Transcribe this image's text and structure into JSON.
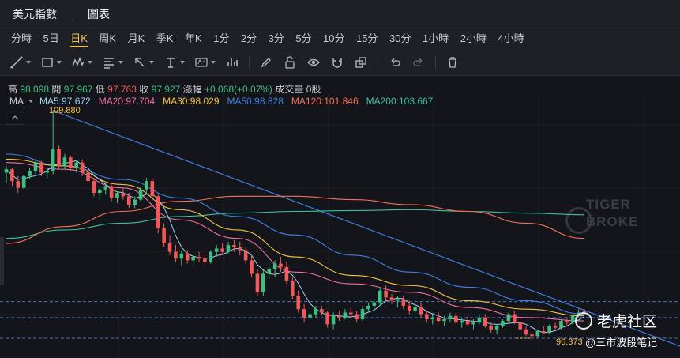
{
  "header": {
    "title": "美元指數",
    "tab": "圖表"
  },
  "periods": [
    {
      "label": "分時",
      "active": false
    },
    {
      "label": "5日",
      "active": false
    },
    {
      "label": "日K",
      "active": true
    },
    {
      "label": "周K",
      "active": false
    },
    {
      "label": "月K",
      "active": false
    },
    {
      "label": "季K",
      "active": false
    },
    {
      "label": "年K",
      "active": false
    },
    {
      "label": "1分",
      "active": false
    },
    {
      "label": "2分",
      "active": false
    },
    {
      "label": "3分",
      "active": false
    },
    {
      "label": "5分",
      "active": false
    },
    {
      "label": "10分",
      "active": false
    },
    {
      "label": "15分",
      "active": false
    },
    {
      "label": "30分",
      "active": false
    },
    {
      "label": "1小時",
      "active": false
    },
    {
      "label": "2小時",
      "active": false
    },
    {
      "label": "4小時",
      "active": false
    }
  ],
  "tools": [
    "trend-line-icon",
    "rectangle-icon",
    "pattern-icon",
    "fibonacci-icon",
    "arrow-icon",
    "text-icon",
    "label-icon",
    "indicator-icon",
    "pen-icon",
    "lock-icon",
    "eye-icon",
    "magnet-icon",
    "clone-icon",
    "undo-icon",
    "redo-icon",
    "trash-icon"
  ],
  "quote": {
    "high_label": "高",
    "high": "98.098",
    "open_label": "開",
    "open": "97.967",
    "low_label": "低",
    "low": "97.763",
    "close_label": "收",
    "close": "97.927",
    "change_label": "漲幅",
    "change": "+0.068(+0.07%)",
    "volume_label": "成交量",
    "volume": "0股"
  },
  "ma": {
    "label": "MA",
    "items": [
      {
        "text": "MA5:97.672",
        "color": "#9fd3f5"
      },
      {
        "text": "MA20:97.704",
        "color": "#f06fa0"
      },
      {
        "text": "MA30:98.029",
        "color": "#f5c244"
      },
      {
        "text": "MA50:98.828",
        "color": "#3f7fe0"
      },
      {
        "text": "MA120:101.846",
        "color": "#f2705a"
      },
      {
        "text": "MA200:103.667",
        "color": "#3fbfa0"
      }
    ]
  },
  "annotations": {
    "high_mark": "109.880",
    "low_mark": "96.373"
  },
  "watermark": {
    "line1": "TIGER",
    "line2": "BROKE"
  },
  "brand": {
    "name": "老虎社区",
    "author": "@三市波段笔记"
  },
  "chart_data": {
    "type": "candlestick",
    "y_high": 109.88,
    "y_low": 96.373,
    "colors": {
      "up": "#3fbf7f",
      "down": "#f25858"
    },
    "candles": [
      [
        106.2,
        106.6,
        105.6,
        106.4
      ],
      [
        106.4,
        106.5,
        105.4,
        105.7
      ],
      [
        105.7,
        106.0,
        105.0,
        105.3
      ],
      [
        105.3,
        106.1,
        105.2,
        106.0
      ],
      [
        106.0,
        106.5,
        105.8,
        106.3
      ],
      [
        106.3,
        107.0,
        106.1,
        106.8
      ],
      [
        106.8,
        106.9,
        106.0,
        106.2
      ],
      [
        106.2,
        106.5,
        105.8,
        106.3
      ],
      [
        106.3,
        109.88,
        106.1,
        107.6
      ],
      [
        107.6,
        107.8,
        106.4,
        106.6
      ],
      [
        106.6,
        107.3,
        106.4,
        107.1
      ],
      [
        107.1,
        107.2,
        106.3,
        106.5
      ],
      [
        106.5,
        106.9,
        106.2,
        106.8
      ],
      [
        106.8,
        107.0,
        106.0,
        106.2
      ],
      [
        106.2,
        106.5,
        105.5,
        105.7
      ],
      [
        105.7,
        105.9,
        104.8,
        105.0
      ],
      [
        105.0,
        105.3,
        104.6,
        105.2
      ],
      [
        105.2,
        105.6,
        104.9,
        105.4
      ],
      [
        105.4,
        105.5,
        104.5,
        104.7
      ],
      [
        104.7,
        105.1,
        104.4,
        105.0
      ],
      [
        105.0,
        105.3,
        104.6,
        104.8
      ],
      [
        104.8,
        105.0,
        104.1,
        104.3
      ],
      [
        104.3,
        104.8,
        104.1,
        104.6
      ],
      [
        104.6,
        105.4,
        104.5,
        105.2
      ],
      [
        105.2,
        105.9,
        105.0,
        105.7
      ],
      [
        105.7,
        105.8,
        104.6,
        104.8
      ],
      [
        104.8,
        104.9,
        102.6,
        102.9
      ],
      [
        102.9,
        103.2,
        101.8,
        102.0
      ],
      [
        102.0,
        102.5,
        101.3,
        101.5
      ],
      [
        101.5,
        101.9,
        100.9,
        101.1
      ],
      [
        101.1,
        101.6,
        100.7,
        101.4
      ],
      [
        101.4,
        101.6,
        100.8,
        101.0
      ],
      [
        101.0,
        101.4,
        100.6,
        101.2
      ],
      [
        101.2,
        101.5,
        100.9,
        101.1
      ],
      [
        101.1,
        101.4,
        100.7,
        100.9
      ],
      [
        100.9,
        101.6,
        100.8,
        101.5
      ],
      [
        101.5,
        101.9,
        101.2,
        101.7
      ],
      [
        101.7,
        102.0,
        101.3,
        101.5
      ],
      [
        101.5,
        102.1,
        101.4,
        101.9
      ],
      [
        101.9,
        102.2,
        101.5,
        101.8
      ],
      [
        101.8,
        102.1,
        101.3,
        101.6
      ],
      [
        101.6,
        101.8,
        100.8,
        101.0
      ],
      [
        101.0,
        101.3,
        100.0,
        100.2
      ],
      [
        100.2,
        100.5,
        98.9,
        99.1
      ],
      [
        99.1,
        100.4,
        98.9,
        100.2
      ],
      [
        100.2,
        100.8,
        99.9,
        100.5
      ],
      [
        100.5,
        101.0,
        100.0,
        100.8
      ],
      [
        100.8,
        101.2,
        100.3,
        100.6
      ],
      [
        100.6,
        100.9,
        99.6,
        99.8
      ],
      [
        99.8,
        100.0,
        98.7,
        98.9
      ],
      [
        98.9,
        99.2,
        97.9,
        98.1
      ],
      [
        98.1,
        98.4,
        97.3,
        97.6
      ],
      [
        97.6,
        98.0,
        97.4,
        97.8
      ],
      [
        97.8,
        98.3,
        97.6,
        98.1
      ],
      [
        98.1,
        98.3,
        97.7,
        97.9
      ],
      [
        97.9,
        98.0,
        97.0,
        97.2
      ],
      [
        97.2,
        97.9,
        96.9,
        97.7
      ],
      [
        97.7,
        98.0,
        97.4,
        97.6
      ],
      [
        97.6,
        98.1,
        97.5,
        97.9
      ],
      [
        97.9,
        98.2,
        97.6,
        97.8
      ],
      [
        97.8,
        98.0,
        97.3,
        97.5
      ],
      [
        97.5,
        98.3,
        97.4,
        98.1
      ],
      [
        98.1,
        98.5,
        97.9,
        98.3
      ],
      [
        98.3,
        98.7,
        98.0,
        98.5
      ],
      [
        98.5,
        99.4,
        98.3,
        99.2
      ],
      [
        99.2,
        99.5,
        98.6,
        98.8
      ],
      [
        98.8,
        99.0,
        98.4,
        98.6
      ],
      [
        98.6,
        98.9,
        98.2,
        98.7
      ],
      [
        98.7,
        98.9,
        98.1,
        98.3
      ],
      [
        98.3,
        98.6,
        97.8,
        98.0
      ],
      [
        98.0,
        98.4,
        97.7,
        98.2
      ],
      [
        98.2,
        98.5,
        97.6,
        97.8
      ],
      [
        97.8,
        98.0,
        97.3,
        97.5
      ],
      [
        97.5,
        97.8,
        97.2,
        97.6
      ],
      [
        97.6,
        97.9,
        97.3,
        97.4
      ],
      [
        97.4,
        97.7,
        97.1,
        97.5
      ],
      [
        97.5,
        97.9,
        97.3,
        97.7
      ],
      [
        97.7,
        97.9,
        97.2,
        97.3
      ],
      [
        97.3,
        97.6,
        97.0,
        97.4
      ],
      [
        97.4,
        97.7,
        97.1,
        97.2
      ],
      [
        97.2,
        97.5,
        96.9,
        97.3
      ],
      [
        97.3,
        97.8,
        97.2,
        97.6
      ],
      [
        97.6,
        97.8,
        97.0,
        97.1
      ],
      [
        97.1,
        97.3,
        96.7,
        96.9
      ],
      [
        96.9,
        97.2,
        96.6,
        97.1
      ],
      [
        97.1,
        97.5,
        97.0,
        97.4
      ],
      [
        97.4,
        97.9,
        97.3,
        97.8
      ],
      [
        97.8,
        98.0,
        97.2,
        97.3
      ],
      [
        97.3,
        97.4,
        96.8,
        96.9
      ],
      [
        96.9,
        97.1,
        96.5,
        96.6
      ],
      [
        96.6,
        96.8,
        96.373,
        96.5
      ],
      [
        96.5,
        96.9,
        96.4,
        96.8
      ],
      [
        96.8,
        97.1,
        96.6,
        96.7
      ],
      [
        96.7,
        97.2,
        96.6,
        97.1
      ],
      [
        97.1,
        97.3,
        96.9,
        97.0
      ],
      [
        97.0,
        97.5,
        96.9,
        97.4
      ],
      [
        97.4,
        97.6,
        97.1,
        97.3
      ],
      [
        97.3,
        97.8,
        97.2,
        97.7
      ],
      [
        97.7,
        98.098,
        97.6,
        97.9
      ],
      [
        97.967,
        98.098,
        97.763,
        97.927
      ]
    ],
    "ma_lines": [
      {
        "name": "MA200",
        "color": "#3fbfa0",
        "values": [
          102.3,
          102.8,
          103.2,
          103.6,
          103.8,
          103.9,
          103.95,
          104.0,
          103.9,
          103.8,
          103.7
        ]
      },
      {
        "name": "MA120",
        "color": "#f2705a",
        "values": [
          102.0,
          103.0,
          103.9,
          104.5,
          104.8,
          104.8,
          104.6,
          104.3,
          103.9,
          103.2,
          102.3
        ]
      },
      {
        "name": "MA50",
        "color": "#3f7fe0",
        "values": [
          107.3,
          106.6,
          105.8,
          104.7,
          103.6,
          102.5,
          101.3,
          100.3,
          99.4,
          98.6,
          97.8
        ]
      },
      {
        "name": "MA30",
        "color": "#f5c244",
        "values": [
          107.0,
          106.6,
          105.5,
          104.0,
          102.8,
          101.2,
          100.1,
          99.5,
          98.6,
          98.1,
          97.7
        ]
      },
      {
        "name": "MA20",
        "color": "#f06fa0",
        "values": [
          106.8,
          106.4,
          105.3,
          103.4,
          102.3,
          100.3,
          99.6,
          99.1,
          98.2,
          97.6,
          97.4
        ]
      }
    ],
    "h_lines": [
      98.55,
      97.6,
      96.373
    ]
  }
}
